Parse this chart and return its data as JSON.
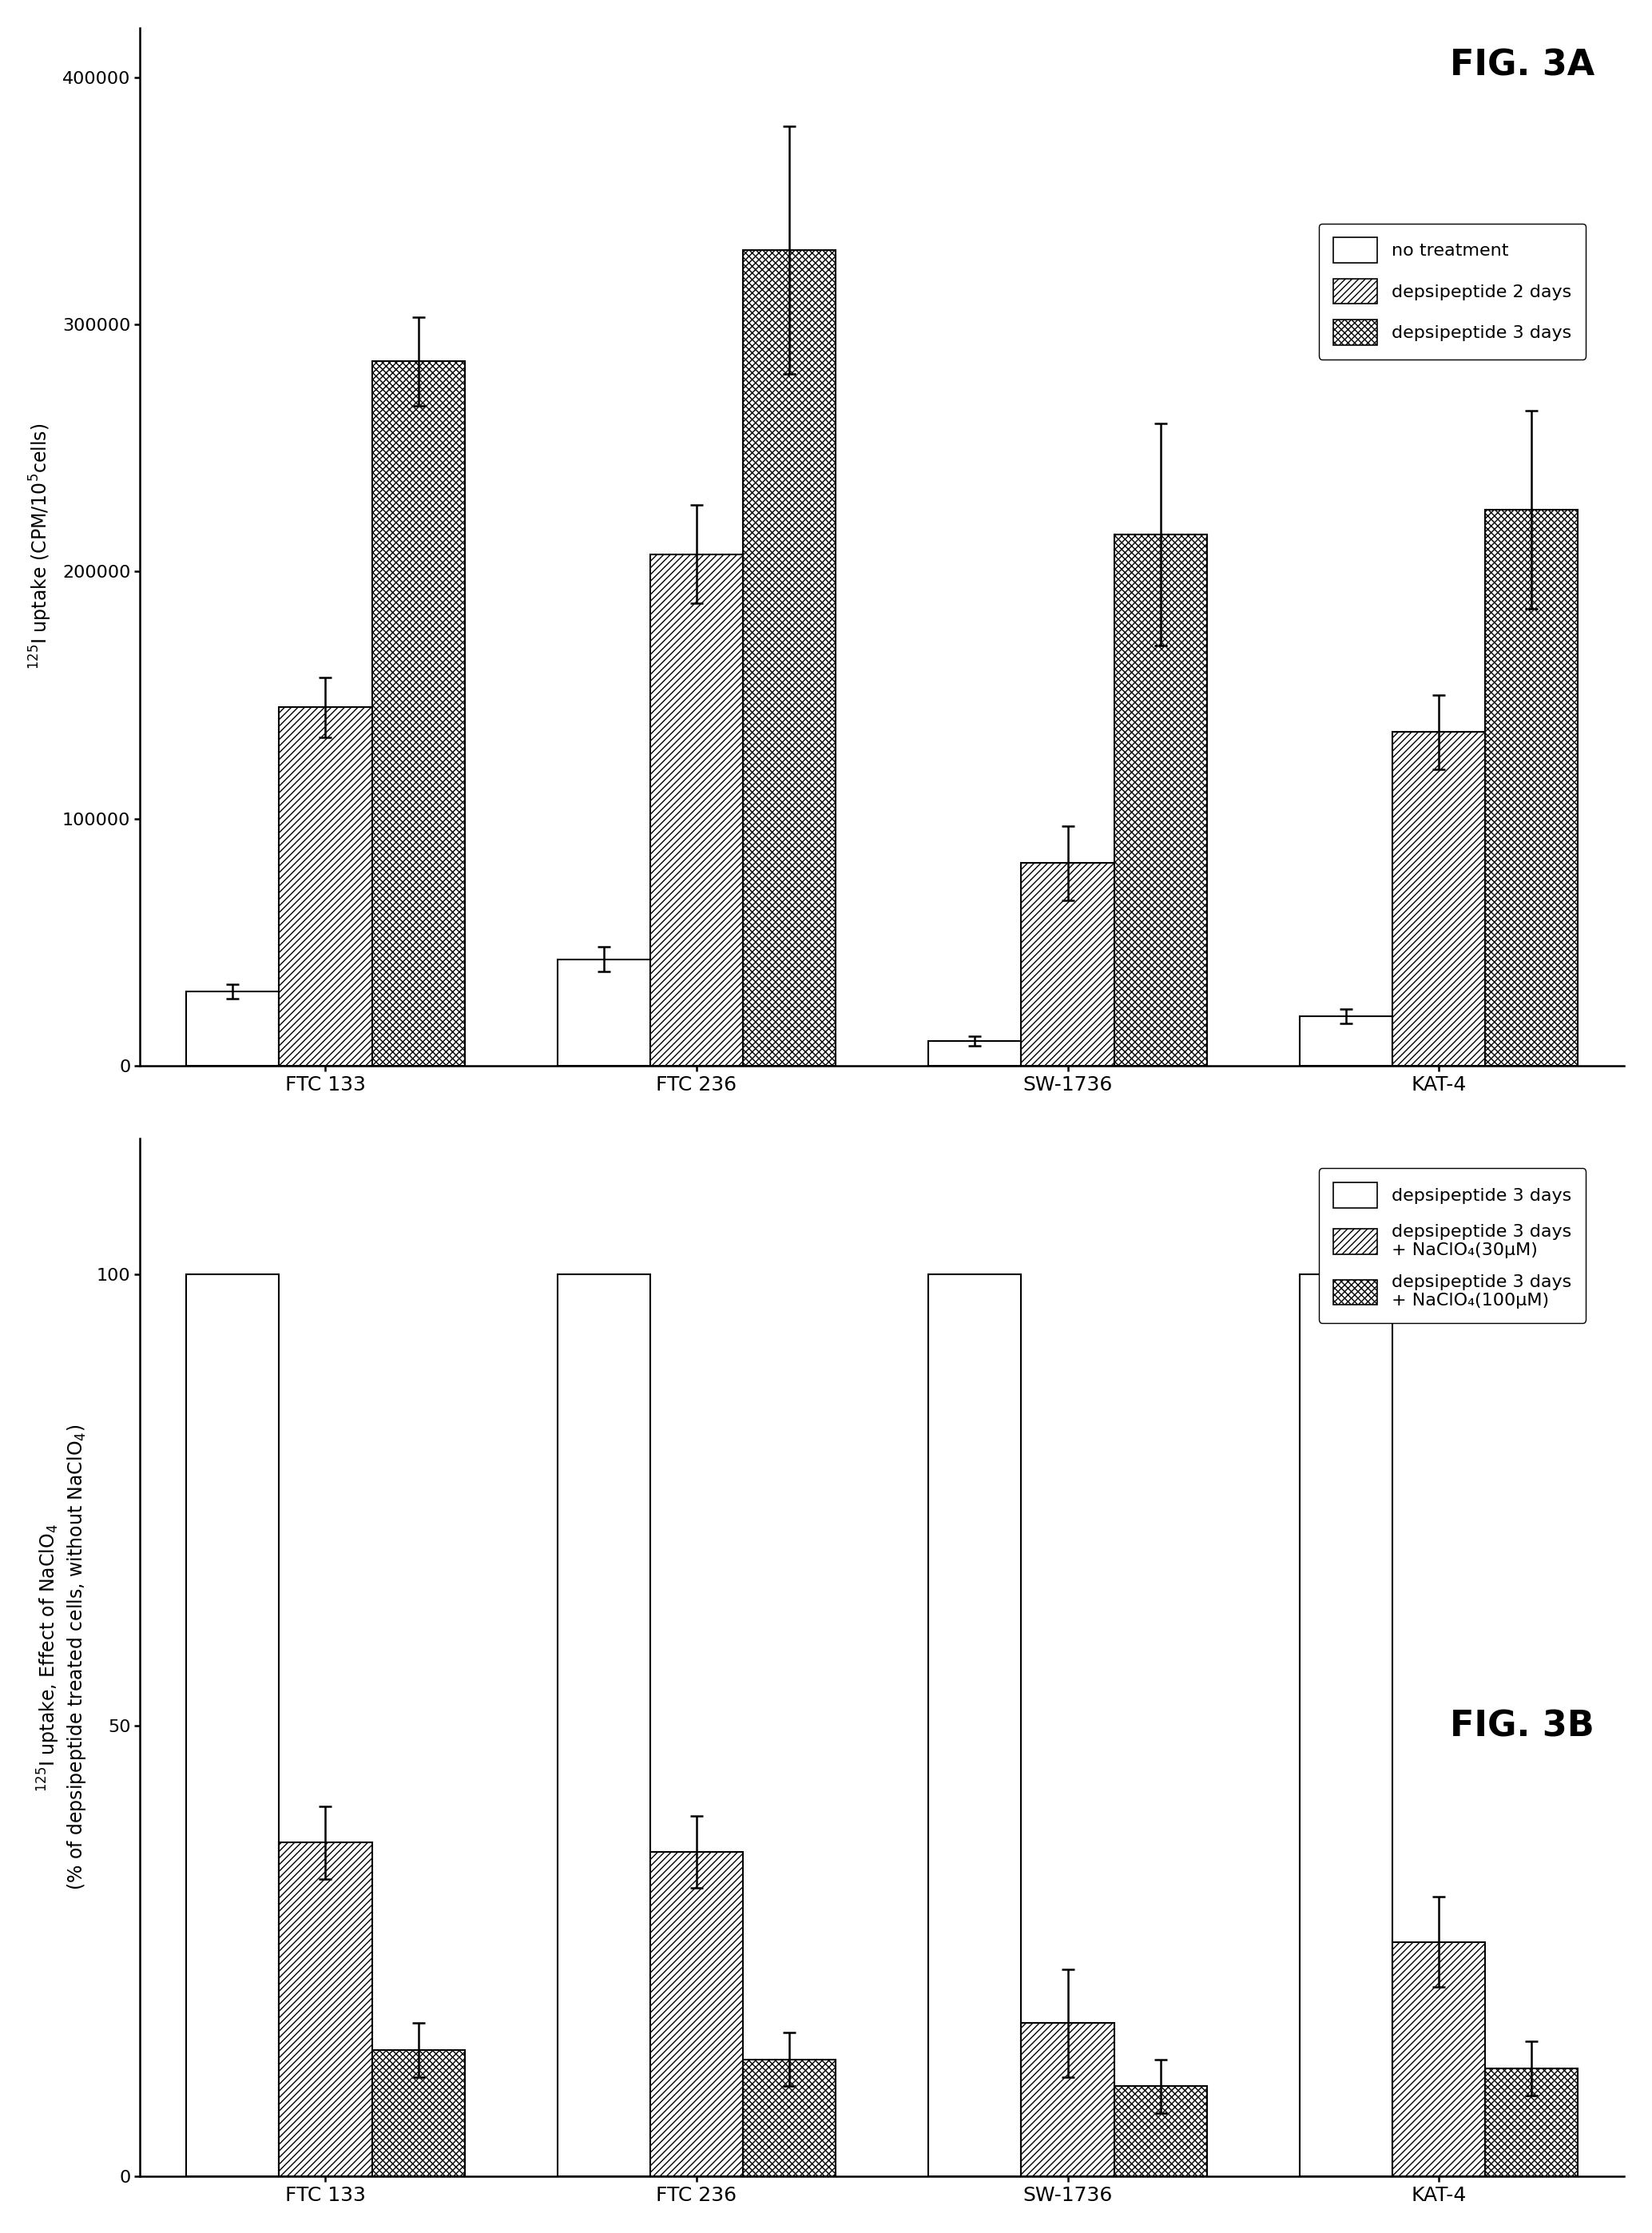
{
  "fig_a": {
    "title": "FIG. 3A",
    "categories": [
      "FTC 133",
      "FTC 236",
      "SW-1736",
      "KAT-4"
    ],
    "series": [
      {
        "label": "no treatment",
        "values": [
          30000,
          43000,
          10000,
          20000
        ],
        "errors": [
          3000,
          5000,
          2000,
          3000
        ],
        "hatch": "",
        "facecolor": "white",
        "edgecolor": "black"
      },
      {
        "label": "depsipeptide 2 days",
        "values": [
          145000,
          207000,
          82000,
          135000
        ],
        "errors": [
          12000,
          20000,
          15000,
          15000
        ],
        "hatch": "////",
        "facecolor": "white",
        "edgecolor": "black"
      },
      {
        "label": "depsipeptide 3 days",
        "values": [
          285000,
          330000,
          215000,
          225000
        ],
        "errors": [
          18000,
          50000,
          45000,
          40000
        ],
        "hatch": "xxxx",
        "facecolor": "white",
        "edgecolor": "black"
      }
    ],
    "ylabel": "$^{125}$I uptake (CPM/10$^{5}$cells)",
    "ylim": [
      0,
      420000
    ],
    "yticks": [
      0,
      100000,
      200000,
      300000,
      400000
    ]
  },
  "fig_b": {
    "title": "FIG. 3B",
    "categories": [
      "FTC 133",
      "FTC 236",
      "SW-1736",
      "KAT-4"
    ],
    "series": [
      {
        "label": "depsipeptide 3 days",
        "values": [
          100,
          100,
          100,
          100
        ],
        "errors": [
          0,
          0,
          0,
          0
        ],
        "hatch": "",
        "facecolor": "white",
        "edgecolor": "black"
      },
      {
        "label": "depsipeptide 3 days\n+ NaClO₄(30μM)",
        "values": [
          37,
          36,
          17,
          26
        ],
        "errors": [
          4,
          4,
          6,
          5
        ],
        "hatch": "////",
        "facecolor": "white",
        "edgecolor": "black"
      },
      {
        "label": "depsipeptide 3 days\n+ NaClO₄(100μM)",
        "values": [
          14,
          13,
          10,
          12
        ],
        "errors": [
          3,
          3,
          3,
          3
        ],
        "hatch": "xxxx",
        "facecolor": "white",
        "edgecolor": "black"
      }
    ],
    "ylabel": "$^{125}$I uptake, Effect of NaClO$_4$\n(% of depsipeptide treated cells, without NaClO$_4$)",
    "ylim": [
      0,
      115
    ],
    "yticks": [
      0,
      50,
      100
    ]
  },
  "bar_width": 0.25,
  "fontsize_title": 32,
  "fontsize_label": 17,
  "fontsize_tick": 16,
  "fontsize_legend": 16
}
